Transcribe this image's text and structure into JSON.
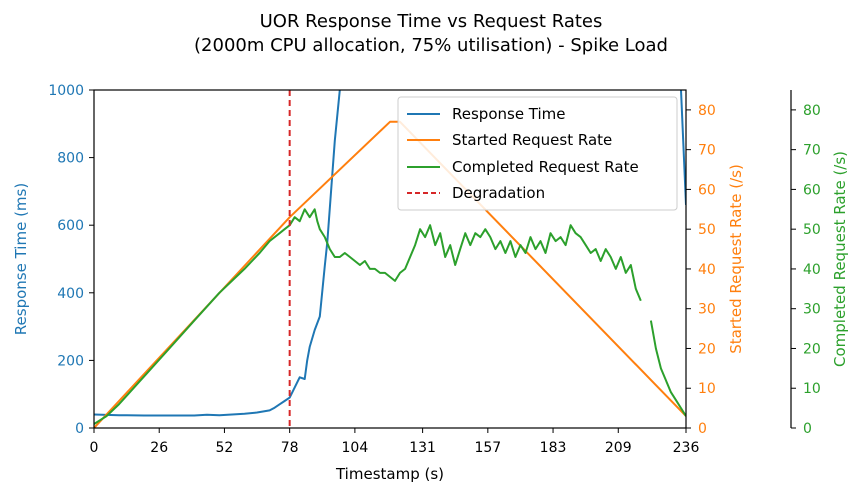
{
  "chart_data": {
    "type": "line",
    "title_line1": "UOR Response Time vs Request Rates",
    "title_line2": "(2000m CPU allocation, 75% utilisation) - Spike Load",
    "xlabel": "Timestamp (s)",
    "xlim": [
      0,
      236
    ],
    "xticks": [
      "0",
      "26",
      "52",
      "78",
      "104",
      "131",
      "157",
      "183",
      "209",
      "236"
    ],
    "xtick_values": [
      0,
      26,
      52,
      78,
      104,
      131,
      157,
      183,
      209,
      236
    ],
    "axes": {
      "left": {
        "label": "Response Time (ms)",
        "ylim": [
          0,
          1000
        ],
        "ticks": [
          0,
          200,
          400,
          600,
          800,
          1000
        ],
        "color": "#1f77b4"
      },
      "right": {
        "label": "Started Request Rate (/s)",
        "ylim": [
          0,
          85
        ],
        "ticks": [
          0,
          10,
          20,
          30,
          40,
          50,
          60,
          70,
          80
        ],
        "color": "#ff7f0e"
      },
      "right2": {
        "label": "Completed Request Rate (/s)",
        "ylim": [
          0,
          85
        ],
        "ticks": [
          0,
          10,
          20,
          30,
          40,
          50,
          60,
          70,
          80
        ],
        "color": "#2ca02c"
      }
    },
    "legend_position": "top-right",
    "series": [
      {
        "name": "Response Time",
        "axis": "left",
        "color": "#1f77b4",
        "style": "solid",
        "x": [
          0,
          10,
          20,
          30,
          40,
          45,
          50,
          55,
          60,
          65,
          70,
          72,
          74,
          76,
          78,
          80,
          82,
          84,
          85,
          86,
          88,
          90,
          92,
          93,
          94,
          96,
          98
        ],
        "y": [
          40,
          38,
          37,
          37,
          37,
          39,
          38,
          40,
          42,
          46,
          52,
          60,
          70,
          80,
          90,
          120,
          150,
          145,
          200,
          240,
          290,
          330,
          480,
          550,
          650,
          850,
          1000
        ],
        "x2": [
          234,
          236
        ],
        "y2": [
          1000,
          660
        ]
      },
      {
        "name": "Started Request Rate",
        "axis": "right",
        "color": "#ff7f0e",
        "style": "solid",
        "x": [
          0,
          78,
          118,
          122,
          236
        ],
        "y": [
          0,
          53,
          77,
          77,
          3
        ]
      },
      {
        "name": "Completed Request Rate",
        "axis": "right2",
        "color": "#2ca02c",
        "style": "solid",
        "x": [
          0,
          5,
          10,
          20,
          30,
          40,
          50,
          60,
          66,
          70,
          74,
          76,
          78,
          80,
          82,
          84,
          86,
          88,
          89,
          90,
          92,
          94,
          96,
          98,
          100,
          102,
          104,
          106,
          108,
          110,
          112,
          114,
          116,
          118,
          120,
          122,
          124,
          126,
          128,
          130,
          132,
          134,
          136,
          138,
          140,
          142,
          144,
          146,
          148,
          150,
          152,
          154,
          156,
          158,
          160,
          162,
          164,
          166,
          168,
          170,
          172,
          174,
          176,
          178,
          180,
          182,
          184,
          186,
          188,
          190,
          192,
          194,
          196,
          198,
          200,
          202,
          204,
          206,
          208,
          210,
          212,
          214,
          216,
          218
        ],
        "y": [
          1,
          3,
          6,
          13,
          20,
          27,
          34,
          40,
          44,
          47,
          49,
          50,
          51,
          53,
          52,
          55,
          53,
          55,
          52,
          50,
          48,
          45,
          43,
          43,
          44,
          43,
          42,
          41,
          42,
          40,
          40,
          39,
          39,
          38,
          37,
          39,
          40,
          43,
          46,
          50,
          48,
          51,
          46,
          49,
          43,
          46,
          41,
          45,
          49,
          46,
          49,
          48,
          50,
          48,
          45,
          47,
          44,
          47,
          43,
          46,
          44,
          48,
          45,
          47,
          44,
          49,
          47,
          48,
          46,
          51,
          49,
          48,
          46,
          44,
          45,
          42,
          45,
          43,
          40,
          43,
          39,
          41,
          35,
          32
        ],
        "x2": [
          222,
          224,
          226,
          228,
          230,
          232,
          234,
          236
        ],
        "y2": [
          27,
          20,
          15,
          12,
          9,
          7,
          5,
          3
        ]
      },
      {
        "name": "Degradation",
        "axis": "left",
        "color": "#d62728",
        "style": "dashed",
        "vline_x": 78
      }
    ]
  }
}
